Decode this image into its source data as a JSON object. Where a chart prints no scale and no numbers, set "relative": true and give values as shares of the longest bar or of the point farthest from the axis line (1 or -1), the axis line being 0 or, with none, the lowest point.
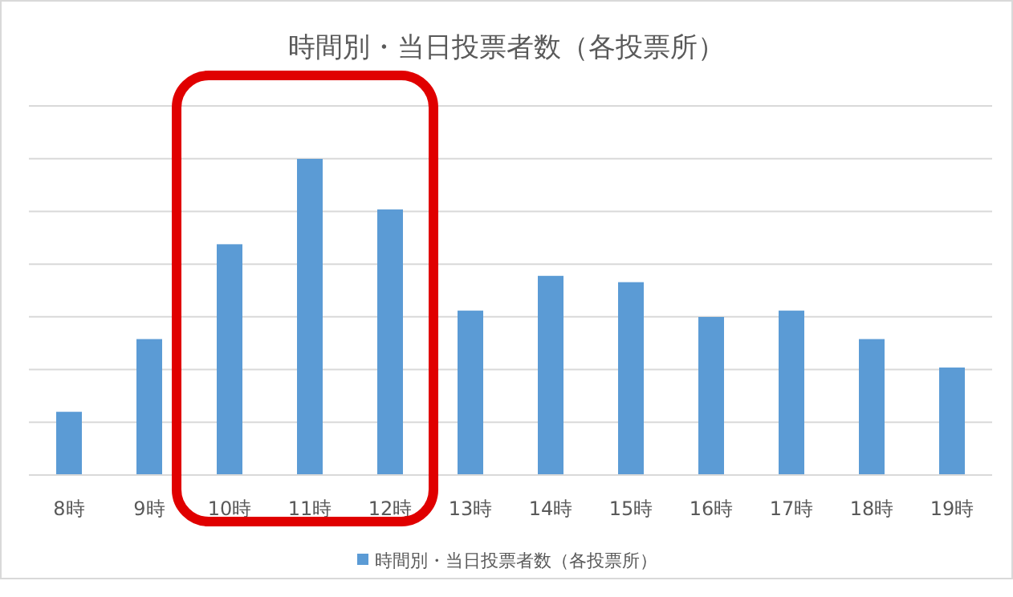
{
  "chart_data": {
    "type": "bar",
    "title": "時間別・当日投票者数（各投票所）",
    "relative": true,
    "grid": true,
    "legend": "bottom",
    "categories": [
      "8時",
      "9時",
      "10時",
      "11時",
      "12時",
      "13時",
      "14時",
      "15時",
      "16時",
      "17時",
      "18時",
      "19時"
    ],
    "series": [
      {
        "name": "時間別・当日投票者数（各投票所）",
        "color": "#5b9bd5",
        "values": [
          0.2,
          0.43,
          0.73,
          1,
          0.84,
          0.52,
          0.63,
          0.61,
          0.5,
          0.52,
          0.43,
          0.34
        ]
      }
    ]
  }
}
